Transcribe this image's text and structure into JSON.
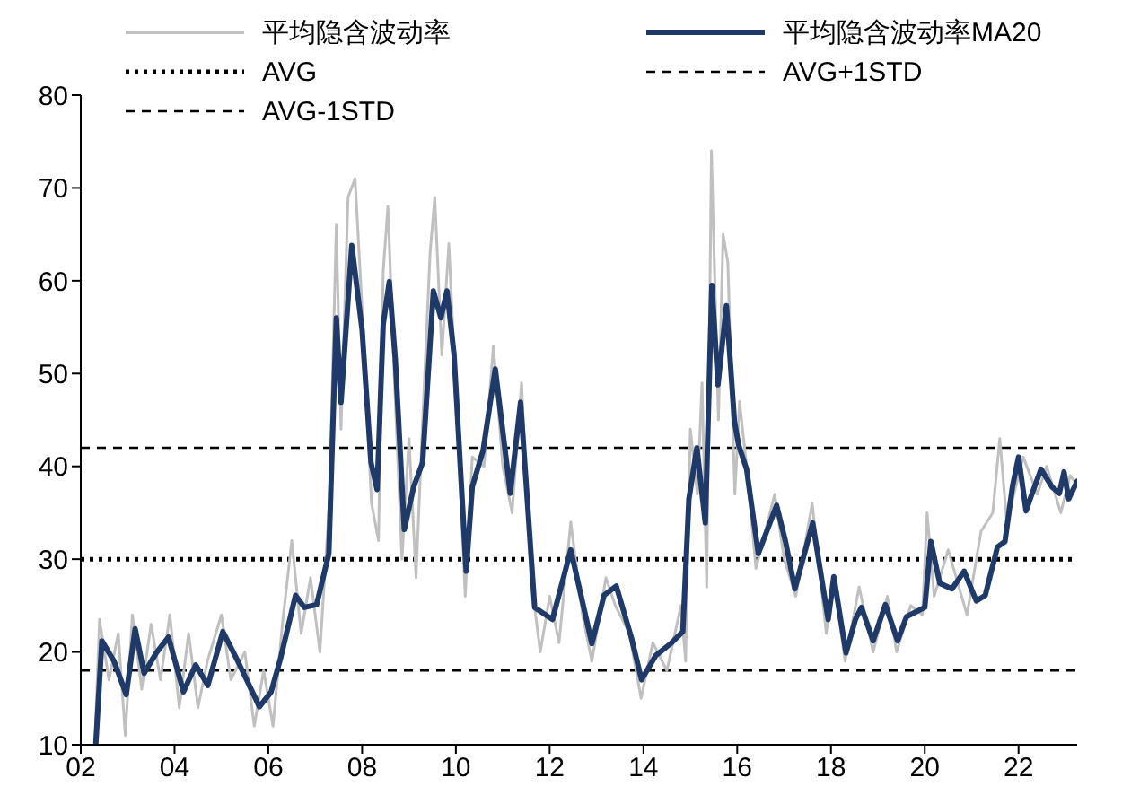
{
  "chart_data": {
    "type": "line",
    "legend": "top",
    "marker": "none",
    "line_style": "solid",
    "xlim": [
      2002,
      2023.25
    ],
    "xticks": [
      {
        "value": 2002,
        "label": "02"
      },
      {
        "value": 2004,
        "label": "04"
      },
      {
        "value": 2006,
        "label": "06"
      },
      {
        "value": 2008,
        "label": "08"
      },
      {
        "value": 2010,
        "label": "10"
      },
      {
        "value": 2012,
        "label": "12"
      },
      {
        "value": 2014,
        "label": "14"
      },
      {
        "value": 2016,
        "label": "16"
      },
      {
        "value": 2018,
        "label": "18"
      },
      {
        "value": 2020,
        "label": "20"
      },
      {
        "value": 2022,
        "label": "22"
      }
    ],
    "ylim": [
      10,
      80
    ],
    "yticks": [
      10,
      20,
      30,
      40,
      50,
      60,
      70,
      80
    ],
    "series": [
      {
        "name": "平均隐含波动率",
        "color": "#c0c0c0",
        "x": [
          2002.3,
          2002.4,
          2002.6,
          2002.8,
          2002.95,
          2003.1,
          2003.3,
          2003.5,
          2003.7,
          2003.9,
          2004.1,
          2004.3,
          2004.5,
          2004.7,
          2005.0,
          2005.2,
          2005.5,
          2005.7,
          2005.9,
          2006.1,
          2006.3,
          2006.5,
          2006.7,
          2006.9,
          2007.1,
          2007.3,
          2007.45,
          2007.55,
          2007.7,
          2007.85,
          2008.0,
          2008.2,
          2008.35,
          2008.45,
          2008.55,
          2008.7,
          2008.85,
          2009.0,
          2009.15,
          2009.3,
          2009.45,
          2009.55,
          2009.7,
          2009.85,
          2010.0,
          2010.2,
          2010.35,
          2010.6,
          2010.8,
          2011.0,
          2011.2,
          2011.4,
          2011.6,
          2011.8,
          2012.0,
          2012.2,
          2012.45,
          2012.7,
          2012.9,
          2013.2,
          2013.4,
          2013.7,
          2013.95,
          2014.2,
          2014.5,
          2014.8,
          2014.9,
          2015.0,
          2015.15,
          2015.25,
          2015.35,
          2015.45,
          2015.6,
          2015.7,
          2015.8,
          2015.95,
          2016.05,
          2016.2,
          2016.4,
          2016.8,
          2017.0,
          2017.25,
          2017.6,
          2017.9,
          2018.05,
          2018.3,
          2018.6,
          2018.9,
          2019.2,
          2019.4,
          2019.7,
          2019.95,
          2020.05,
          2020.2,
          2020.5,
          2020.9,
          2021.2,
          2021.45,
          2021.6,
          2021.75,
          2022.1,
          2022.4,
          2022.6,
          2022.9,
          2023.1,
          2023.25
        ],
        "values": [
          10,
          23.5,
          17,
          22,
          11,
          24,
          16,
          23,
          17,
          24,
          14,
          22,
          14,
          19,
          24,
          17,
          20,
          12,
          18,
          12,
          23,
          32,
          22,
          28,
          20,
          36,
          66,
          44,
          69,
          71,
          57,
          36,
          32,
          61,
          68,
          48,
          30,
          43,
          28,
          46,
          63,
          69,
          52,
          64,
          48,
          26,
          41,
          40,
          53,
          40,
          35,
          49,
          28,
          20,
          26,
          21,
          34,
          24,
          19,
          28,
          25,
          22,
          15,
          21,
          18,
          25,
          19,
          44,
          37,
          49,
          27,
          74,
          45,
          65,
          62,
          37,
          47,
          40,
          29,
          37,
          30,
          26,
          36,
          22,
          28,
          19,
          27,
          20,
          26,
          20,
          25,
          24,
          35,
          26,
          31,
          24,
          33,
          35,
          43,
          34,
          41,
          37,
          40,
          35,
          39,
          38
        ]
      },
      {
        "name": "平均隐含波动率MA20",
        "color": "#1f3a68",
        "x": [
          2002.32,
          2002.45,
          2002.71,
          2002.97,
          2003.16,
          2003.35,
          2003.61,
          2003.87,
          2004.19,
          2004.45,
          2004.71,
          2005.03,
          2005.35,
          2005.81,
          2006.06,
          2006.26,
          2006.58,
          2006.77,
          2007.03,
          2007.29,
          2007.45,
          2007.55,
          2007.78,
          2008.0,
          2008.19,
          2008.32,
          2008.45,
          2008.58,
          2008.71,
          2008.9,
          2009.1,
          2009.29,
          2009.52,
          2009.68,
          2009.81,
          2009.96,
          2010.22,
          2010.35,
          2010.58,
          2010.84,
          2011.16,
          2011.38,
          2011.68,
          2012.06,
          2012.45,
          2012.9,
          2013.16,
          2013.42,
          2013.74,
          2013.96,
          2014.26,
          2014.58,
          2014.84,
          2014.97,
          2015.14,
          2015.32,
          2015.46,
          2015.59,
          2015.77,
          2015.94,
          2016.03,
          2016.2,
          2016.45,
          2016.84,
          2017.03,
          2017.23,
          2017.61,
          2017.94,
          2018.06,
          2018.32,
          2018.52,
          2018.65,
          2018.9,
          2019.16,
          2019.42,
          2019.61,
          2020.0,
          2020.13,
          2020.32,
          2020.58,
          2020.84,
          2021.1,
          2021.29,
          2021.42,
          2021.55,
          2021.71,
          2021.87,
          2022.0,
          2022.16,
          2022.29,
          2022.48,
          2022.71,
          2022.87,
          2022.97,
          2023.07,
          2023.25
        ],
        "values": [
          10,
          21.2,
          19,
          15.4,
          22.5,
          17.7,
          19.9,
          21.6,
          15.7,
          18.6,
          16.4,
          22.2,
          19,
          14.1,
          15.7,
          19.3,
          26.1,
          24.8,
          25.1,
          30.6,
          56,
          46.9,
          63.8,
          54.7,
          40.4,
          37.5,
          55.3,
          59.9,
          51.4,
          33.2,
          37.8,
          40.4,
          58.9,
          56,
          58.9,
          52.1,
          28.7,
          37.8,
          41.7,
          50.5,
          37.1,
          46.9,
          24.8,
          23.5,
          31,
          20.9,
          26.1,
          27.1,
          21.6,
          17,
          19.6,
          20.9,
          22.2,
          36.5,
          42,
          33.9,
          59.5,
          48.8,
          57.3,
          44.9,
          42.3,
          39.7,
          30.6,
          35.8,
          31.9,
          26.8,
          33.9,
          23.5,
          28.1,
          19.9,
          23.5,
          24.8,
          21.2,
          25.1,
          21.2,
          23.8,
          24.8,
          31.9,
          27.4,
          26.8,
          28.7,
          25.5,
          26.1,
          28.7,
          31.3,
          31.9,
          37.8,
          41,
          35.2,
          37.1,
          39.7,
          37.8,
          37.1,
          39.4,
          36.5,
          38.4
        ]
      }
    ],
    "ref_lines": [
      {
        "axis": "y",
        "value": 30,
        "label": "AVG",
        "color": "#000000",
        "line_style": "dotted"
      },
      {
        "axis": "y",
        "value": 42,
        "label": "AVG+1STD",
        "color": "#000000",
        "line_style": "dashed"
      },
      {
        "axis": "y",
        "value": 18,
        "label": "AVG-1STD",
        "color": "#000000",
        "line_style": "dashed"
      }
    ]
  }
}
